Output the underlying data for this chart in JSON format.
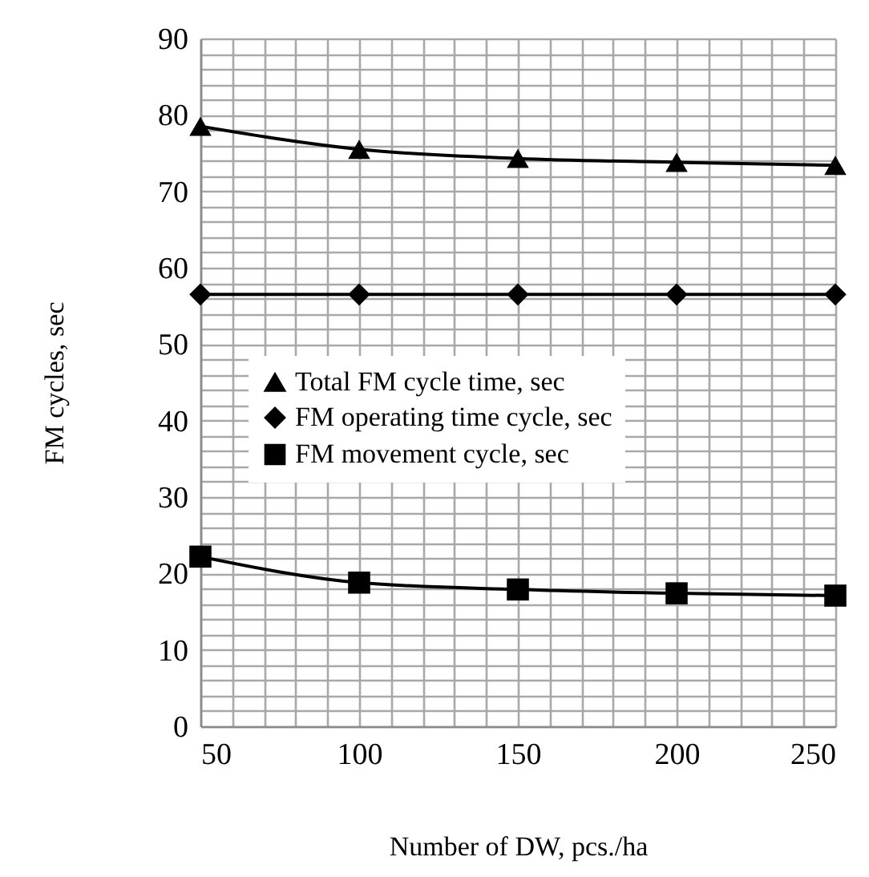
{
  "chart_data": {
    "type": "line",
    "xlabel": "Number of DW, pcs./ha",
    "ylabel": "FM cycles, sec",
    "x": [
      50,
      100,
      150,
      200,
      250
    ],
    "series": [
      {
        "name": "Total FM cycle time, sec",
        "color": "#000000",
        "marker": "triangle",
        "values": [
          78.5,
          75.5,
          74.3,
          73.8,
          73.4
        ]
      },
      {
        "name": "FM operating time cycle, sec",
        "color": "#000000",
        "marker": "diamond",
        "values": [
          56.5,
          56.5,
          56.5,
          56.5,
          56.5
        ]
      },
      {
        "name": "FM movement cycle, sec",
        "color": "#000000",
        "marker": "square",
        "values": [
          22.2,
          18.8,
          17.9,
          17.4,
          17.1
        ]
      }
    ],
    "xlim": [
      50,
      250
    ],
    "xticks": [
      50,
      {
        "value": 60,
        "label": null
      },
      {
        "value": 70,
        "label": null
      },
      {
        "value": 80,
        "label": null
      },
      {
        "value": 90,
        "label": null
      },
      100,
      {
        "value": 110,
        "label": null
      },
      {
        "value": 120,
        "label": null
      },
      {
        "value": 130,
        "label": null
      },
      {
        "value": 140,
        "label": null
      },
      150,
      {
        "value": 160,
        "label": null
      },
      {
        "value": 170,
        "label": null
      },
      {
        "value": 180,
        "label": null
      },
      {
        "value": 190,
        "label": null
      },
      200,
      {
        "value": 210,
        "label": null
      },
      {
        "value": 220,
        "label": null
      },
      {
        "value": 230,
        "label": null
      },
      {
        "value": 240,
        "label": null
      },
      250
    ],
    "ylim": [
      0,
      90
    ],
    "yticks": [
      0,
      {
        "value": 2,
        "label": null
      },
      {
        "value": 4,
        "label": null
      },
      {
        "value": 6,
        "label": null
      },
      {
        "value": 8,
        "label": null
      },
      10,
      {
        "value": 12,
        "label": null
      },
      {
        "value": 14,
        "label": null
      },
      {
        "value": 16,
        "label": null
      },
      {
        "value": 18,
        "label": null
      },
      20,
      {
        "value": 22,
        "label": null
      },
      {
        "value": 24,
        "label": null
      },
      {
        "value": 26,
        "label": null
      },
      {
        "value": 28,
        "label": null
      },
      30,
      {
        "value": 32,
        "label": null
      },
      {
        "value": 34,
        "label": null
      },
      {
        "value": 36,
        "label": null
      },
      {
        "value": 38,
        "label": null
      },
      40,
      {
        "value": 42,
        "label": null
      },
      {
        "value": 44,
        "label": null
      },
      {
        "value": 46,
        "label": null
      },
      {
        "value": 48,
        "label": null
      },
      50,
      {
        "value": 52,
        "label": null
      },
      {
        "value": 54,
        "label": null
      },
      {
        "value": 56,
        "label": null
      },
      {
        "value": 58,
        "label": null
      },
      60,
      {
        "value": 62,
        "label": null
      },
      {
        "value": 64,
        "label": null
      },
      {
        "value": 66,
        "label": null
      },
      {
        "value": 68,
        "label": null
      },
      70,
      {
        "value": 72,
        "label": null
      },
      {
        "value": 74,
        "label": null
      },
      {
        "value": 76,
        "label": null
      },
      {
        "value": 78,
        "label": null
      },
      80,
      {
        "value": 82,
        "label": null
      },
      {
        "value": 84,
        "label": null
      },
      {
        "value": 86,
        "label": null
      },
      {
        "value": 88,
        "label": null
      },
      90
    ],
    "grid": true,
    "legend": "left",
    "line_style": "solid"
  }
}
